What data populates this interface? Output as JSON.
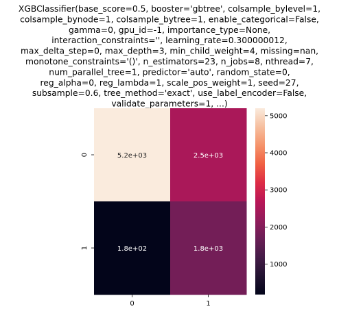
{
  "chart_data": {
    "type": "heatmap",
    "title_lines": [
      "XGBClassifier(base_score=0.5, booster='gbtree', colsample_bylevel=1,",
      "colsample_bynode=1, colsample_bytree=1, enable_categorical=False,",
      "gamma=0, gpu_id=-1, importance_type=None,",
      "interaction_constraints='', learning_rate=0.300000012,",
      "max_delta_step=0, max_depth=3, min_child_weight=4, missing=nan,",
      "monotone_constraints='()', n_estimators=23, n_jobs=8, nthread=7,",
      "num_parallel_tree=1, predictor='auto', random_state=0,",
      "reg_alpha=0, reg_lambda=1, scale_pos_weight=1, seed=27,",
      "subsample=0.6, tree_method='exact', use_label_encoder=False,",
      "validate_parameters=1, ...)"
    ],
    "x_categories": [
      "0",
      "1"
    ],
    "y_categories": [
      "0",
      "1"
    ],
    "values": [
      [
        5200,
        2500
      ],
      [
        180,
        1800
      ]
    ],
    "cell_labels": [
      [
        "5.2e+03",
        "2.5e+03"
      ],
      [
        "1.8e+02",
        "1.8e+03"
      ]
    ],
    "colorbar": {
      "colormap": "rocket",
      "vmin": 180,
      "vmax": 5200,
      "ticks": [
        1000,
        2000,
        3000,
        4000,
        5000
      ],
      "tick_labels": [
        "1000",
        "2000",
        "3000",
        "4000",
        "5000"
      ]
    },
    "xlabel": "",
    "ylabel": ""
  }
}
